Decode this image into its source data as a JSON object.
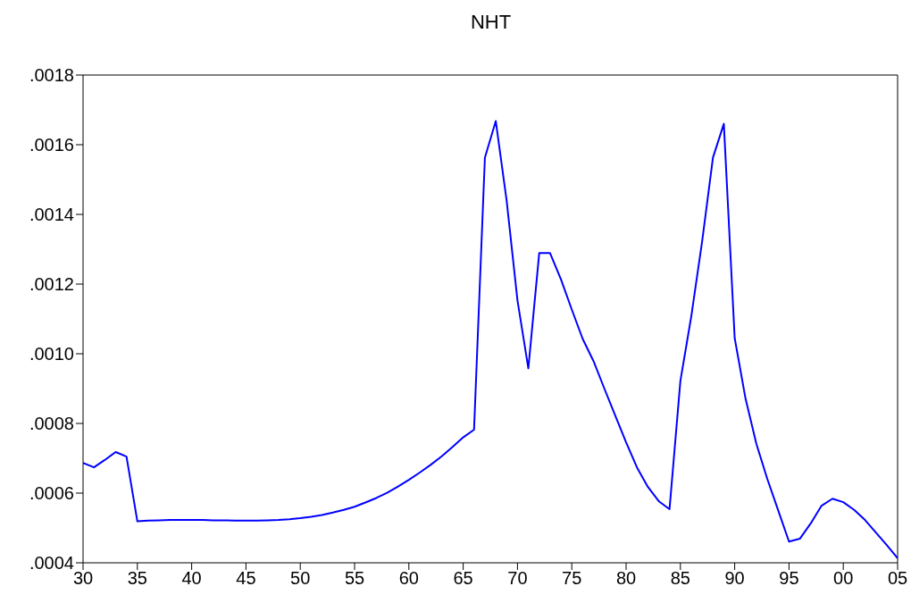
{
  "chart_data": {
    "type": "line",
    "title": "NHT",
    "x": [
      1930,
      1931,
      1932,
      1933,
      1934,
      1935,
      1936,
      1937,
      1938,
      1939,
      1940,
      1941,
      1942,
      1943,
      1944,
      1945,
      1946,
      1947,
      1948,
      1949,
      1950,
      1951,
      1952,
      1953,
      1954,
      1955,
      1956,
      1957,
      1958,
      1959,
      1960,
      1961,
      1962,
      1963,
      1964,
      1965,
      1966,
      1967,
      1968,
      1969,
      1970,
      1971,
      1972,
      1973,
      1974,
      1975,
      1976,
      1977,
      1978,
      1979,
      1980,
      1981,
      1982,
      1983,
      1984,
      1985,
      1986,
      1987,
      1988,
      1989,
      1990,
      1991,
      1992,
      1993,
      1994,
      1995,
      1996,
      1997,
      1998,
      1999,
      2000,
      2001,
      2002,
      2003,
      2004,
      2005
    ],
    "series": [
      {
        "color": "#0000ff",
        "values": [
          0.000687,
          0.000674,
          0.000695,
          0.000718,
          0.000705,
          0.000519,
          0.000521,
          0.000522,
          0.000523,
          0.000523,
          0.000523,
          0.000523,
          0.000522,
          0.000522,
          0.000521,
          0.000521,
          0.000521,
          0.000522,
          0.000523,
          0.000525,
          0.000528,
          0.000532,
          0.000537,
          0.000544,
          0.000552,
          0.000561,
          0.000573,
          0.000586,
          0.000601,
          0.000619,
          0.000638,
          0.000659,
          0.000681,
          0.000705,
          0.000732,
          0.00076,
          0.000782,
          0.001563,
          0.001668,
          0.00144,
          0.001153,
          0.000958,
          0.001289,
          0.001289,
          0.001214,
          0.001127,
          0.001043,
          0.000979,
          0.0009,
          0.000823,
          0.000746,
          0.000674,
          0.000618,
          0.000577,
          0.000554,
          0.000922,
          0.001107,
          0.001322,
          0.001563,
          0.00166,
          0.001045,
          0.000871,
          0.000741,
          0.000641,
          0.000551,
          0.000461,
          0.000469,
          0.000513,
          0.000564,
          0.000584,
          0.000574,
          0.000552,
          0.000523,
          0.000487,
          0.000451,
          0.000413
        ]
      }
    ],
    "xlim": [
      1930,
      2005
    ],
    "xticks": [
      {
        "value": 1930,
        "label": "30"
      },
      {
        "value": 1935,
        "label": "35"
      },
      {
        "value": 1940,
        "label": "40"
      },
      {
        "value": 1945,
        "label": "45"
      },
      {
        "value": 1950,
        "label": "50"
      },
      {
        "value": 1955,
        "label": "55"
      },
      {
        "value": 1960,
        "label": "60"
      },
      {
        "value": 1965,
        "label": "65"
      },
      {
        "value": 1970,
        "label": "70"
      },
      {
        "value": 1975,
        "label": "75"
      },
      {
        "value": 1980,
        "label": "80"
      },
      {
        "value": 1985,
        "label": "85"
      },
      {
        "value": 1990,
        "label": "90"
      },
      {
        "value": 1995,
        "label": "95"
      },
      {
        "value": 2000,
        "label": "00"
      },
      {
        "value": 2005,
        "label": "05"
      }
    ],
    "ylim": [
      0.0004,
      0.0018
    ],
    "yticks": [
      {
        "value": 0.0004,
        "label": ".0004"
      },
      {
        "value": 0.0006,
        "label": ".0006"
      },
      {
        "value": 0.0008,
        "label": ".0008"
      },
      {
        "value": 0.001,
        "label": ".0010"
      },
      {
        "value": 0.0012,
        "label": ".0012"
      },
      {
        "value": 0.0014,
        "label": ".0014"
      },
      {
        "value": 0.0016,
        "label": ".0016"
      },
      {
        "value": 0.0018,
        "label": ".0018"
      }
    ],
    "grid": false,
    "legend": false,
    "marker": "none",
    "line_style": "solid"
  }
}
